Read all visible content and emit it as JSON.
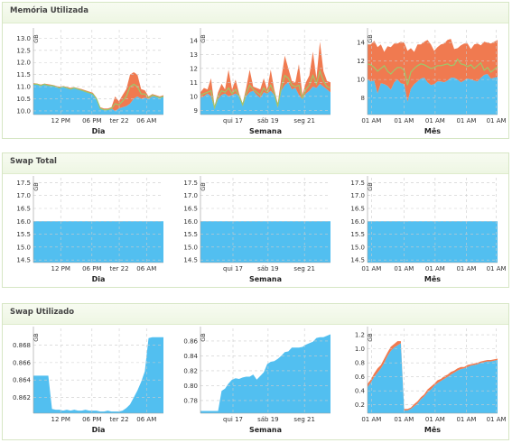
{
  "colors": {
    "used": "#52bff0",
    "cached": "#f07a50",
    "trend": "#9ec76a",
    "grid": "#cccccc"
  },
  "chart_data": [
    {
      "title": "Memória Utilizada",
      "charts": [
        {
          "type": "area",
          "period": "Dia",
          "unit": "GB",
          "ylim": [
            9.85,
            13.2
          ],
          "yticks": [
            "10.0",
            "10.5",
            "11.0",
            "11.5",
            "12.0",
            "12.5",
            "13.0"
          ],
          "ytick_values": [
            10.0,
            10.5,
            11.0,
            11.5,
            12.0,
            12.5,
            13.0
          ],
          "xticks": [
            "12 PM",
            "06 PM",
            "ter 22",
            "06 AM"
          ],
          "xtick_pos": [
            0.21,
            0.45,
            0.66,
            0.87
          ],
          "series": [
            {
              "values": [
                11.1,
                11.1,
                11.05,
                11.1,
                11.05,
                11.05,
                11.0,
                10.95,
                11.0,
                10.95,
                10.9,
                10.95,
                10.9,
                10.85,
                10.8,
                10.75,
                10.7,
                10.5,
                10.1,
                10.05,
                10.05,
                10.1,
                10.0,
                10.1,
                10.15,
                10.2,
                10.3,
                10.5,
                10.6,
                10.5,
                10.55,
                10.5,
                10.6,
                10.6,
                10.55,
                10.6
              ]
            },
            {
              "values": [
                0.05,
                0.03,
                0.04,
                0.03,
                0.05,
                0.03,
                0.04,
                0.05,
                0.03,
                0.04,
                0.05,
                0.03,
                0.04,
                0.05,
                0.05,
                0.05,
                0.05,
                0.05,
                0.05,
                0.05,
                0.05,
                0.05,
                0.6,
                0.3,
                0.5,
                0.7,
                1.2,
                1.1,
                0.9,
                0.4,
                0.3,
                0.1,
                0.1,
                0.05,
                0.05,
                0.05
              ]
            }
          ],
          "trend": [
            11.1,
            11.1,
            11.05,
            11.1,
            11.05,
            11.05,
            11.0,
            10.95,
            11.0,
            10.95,
            10.9,
            10.95,
            10.9,
            10.85,
            10.8,
            10.75,
            10.7,
            10.5,
            10.1,
            10.05,
            10.05,
            10.1,
            10.3,
            10.25,
            10.4,
            10.6,
            11.0,
            11.1,
            11.0,
            10.7,
            10.7,
            10.55,
            10.65,
            10.6,
            10.55,
            10.6
          ]
        },
        {
          "type": "area",
          "period": "Semana",
          "unit": "GB",
          "ylim": [
            8.7,
            14.5
          ],
          "yticks": [
            "9",
            "10",
            "11",
            "12",
            "13",
            "14"
          ],
          "ytick_values": [
            9,
            10,
            11,
            12,
            13,
            14
          ],
          "xticks": [
            "qui 17",
            "sáb 19",
            "seg 21"
          ],
          "xtick_pos": [
            0.25,
            0.52,
            0.8
          ],
          "series": [
            {
              "values": [
                9.9,
                10.0,
                10.2,
                10.0,
                9.1,
                9.8,
                10.1,
                10.2,
                10.0,
                10.1,
                10.2,
                10.0,
                9.3,
                10.0,
                10.3,
                10.4,
                10.1,
                9.9,
                10.3,
                10.2,
                10.4,
                10.1,
                9.2,
                10.4,
                10.8,
                11.0,
                10.5,
                10.6,
                10.1,
                9.8,
                10.2,
                10.4,
                10.7,
                10.6,
                10.9,
                10.7,
                10.5,
                10.3
              ]
            },
            {
              "values": [
                0.4,
                0.6,
                0.3,
                1.3,
                0.2,
                0.5,
                0.8,
                0.3,
                1.9,
                0.4,
                1.0,
                0.2,
                0.2,
                0.6,
                1.6,
                0.3,
                0.5,
                0.6,
                1.0,
                0.3,
                1.5,
                0.4,
                0.3,
                0.9,
                2.1,
                1.0,
                0.6,
                0.4,
                2.2,
                0.3,
                0.8,
                1.1,
                2.5,
                0.7,
                3.0,
                1.1,
                0.6,
                0.7
              ]
            }
          ],
          "trend": [
            10.1,
            10.2,
            10.3,
            10.4,
            9.2,
            10.0,
            10.4,
            10.3,
            10.6,
            10.2,
            10.5,
            10.0,
            9.4,
            10.2,
            10.8,
            10.5,
            10.3,
            10.1,
            10.6,
            10.3,
            10.8,
            10.2,
            9.3,
            10.6,
            11.5,
            11.3,
            10.8,
            10.7,
            10.8,
            9.9,
            10.5,
            10.8,
            11.5,
            10.9,
            11.8,
            11.1,
            10.7,
            10.6
          ]
        },
        {
          "type": "area",
          "period": "Mês",
          "unit": "GB",
          "ylim": [
            6.2,
            15.0
          ],
          "yticks": [
            "8",
            "10",
            "12",
            "14"
          ],
          "ytick_values": [
            8,
            10,
            12,
            14
          ],
          "xticks": [
            "01 AM",
            "01 AM",
            "01 AM",
            "01 AM",
            "01 AM"
          ],
          "xtick_pos": [
            0.03,
            0.28,
            0.52,
            0.76,
            0.99
          ],
          "series": [
            {
              "values": [
                10.0,
                9.8,
                9.9,
                8.5,
                9.6,
                9.5,
                9.3,
                8.9,
                9.7,
                10.0,
                9.6,
                9.5,
                7.6,
                9.0,
                9.5,
                9.8,
                10.1,
                10.2,
                9.7,
                9.4,
                9.5,
                9.8,
                9.8,
                9.7,
                9.9,
                10.2,
                10.2,
                10.0,
                9.7,
                9.9,
                10.1,
                10.0,
                9.9,
                9.8,
                10.2,
                10.5,
                10.6,
                10.1,
                10.2,
                10.3
              ]
            },
            {
              "values": [
                3.8,
                4.0,
                4.3,
                5.0,
                4.2,
                3.5,
                4.3,
                4.6,
                4.2,
                3.9,
                4.5,
                4.5,
                5.5,
                4.4,
                3.5,
                4.0,
                3.7,
                3.9,
                4.6,
                4.4,
                3.6,
                3.7,
                4.0,
                4.2,
                4.4,
                4.2,
                3.1,
                3.4,
                4.0,
                4.0,
                3.8,
                3.3,
                3.9,
                4.1,
                3.5,
                3.6,
                3.4,
                3.8,
                3.9,
                4.0
              ]
            }
          ],
          "trend": [
            11.7,
            11.6,
            11.3,
            10.9,
            11.2,
            11.5,
            10.9,
            10.6,
            11.0,
            11.3,
            11.3,
            11.0,
            9.4,
            10.8,
            11.2,
            11.5,
            11.7,
            11.6,
            11.4,
            11.2,
            11.3,
            11.5,
            11.5,
            11.6,
            11.7,
            11.5,
            11.6,
            12.2,
            11.7,
            11.6,
            11.4,
            11.6,
            11.2,
            11.5,
            11.8,
            11.0,
            11.3,
            10.8,
            11.1,
            11.4
          ]
        }
      ]
    },
    {
      "title": "Swap Total",
      "charts": [
        {
          "type": "area",
          "period": "Dia",
          "unit": "GB",
          "ylim": [
            14.4,
            17.55
          ],
          "yticks": [
            "14.5",
            "15.0",
            "15.5",
            "16.0",
            "16.5",
            "17.0",
            "17.5"
          ],
          "ytick_values": [
            14.5,
            15.0,
            15.5,
            16.0,
            16.5,
            17.0,
            17.5
          ],
          "xticks": [
            "12 PM",
            "06 PM",
            "ter 22",
            "06 AM"
          ],
          "xtick_pos": [
            0.21,
            0.45,
            0.66,
            0.87
          ],
          "series": [
            {
              "values": [
                16.0,
                16.0
              ]
            }
          ]
        },
        {
          "type": "area",
          "period": "Semana",
          "unit": "GB",
          "ylim": [
            14.4,
            17.55
          ],
          "yticks": [
            "14.5",
            "15.0",
            "15.5",
            "16.0",
            "16.5",
            "17.0",
            "17.5"
          ],
          "ytick_values": [
            14.5,
            15.0,
            15.5,
            16.0,
            16.5,
            17.0,
            17.5
          ],
          "xticks": [
            "qui 17",
            "sáb 19",
            "seg 21"
          ],
          "xtick_pos": [
            0.25,
            0.52,
            0.8
          ],
          "series": [
            {
              "values": [
                16.0,
                16.0
              ]
            }
          ]
        },
        {
          "type": "area",
          "period": "Mês",
          "unit": "GB",
          "ylim": [
            14.4,
            17.55
          ],
          "yticks": [
            "14.5",
            "15.0",
            "15.5",
            "16.0",
            "16.5",
            "17.0",
            "17.5"
          ],
          "ytick_values": [
            14.5,
            15.0,
            15.5,
            16.0,
            16.5,
            17.0,
            17.5
          ],
          "xticks": [
            "01 AM",
            "01 AM",
            "01 AM",
            "01 AM",
            "01 AM"
          ],
          "xtick_pos": [
            0.03,
            0.28,
            0.52,
            0.76,
            0.99
          ],
          "series": [
            {
              "values": [
                16.0,
                16.0
              ]
            }
          ]
        }
      ]
    },
    {
      "title": "Swap Utilizado",
      "charts": [
        {
          "type": "area",
          "period": "Dia",
          "unit": "GB",
          "ylim": [
            0.8602,
            0.8695
          ],
          "yticks": [
            "0.862",
            "0.864",
            "0.866",
            "0.868"
          ],
          "ytick_values": [
            0.862,
            0.864,
            0.866,
            0.868
          ],
          "xticks": [
            "12 PM",
            "06 PM",
            "ter 22",
            "06 AM"
          ],
          "xtick_pos": [
            0.21,
            0.45,
            0.66,
            0.87
          ],
          "series": [
            {
              "values": [
                0.8645,
                0.8645,
                0.8645,
                0.8645,
                0.8645,
                0.8607,
                0.8606,
                0.8606,
                0.8605,
                0.8606,
                0.8605,
                0.8606,
                0.8605,
                0.8605,
                0.8606,
                0.8605,
                0.8605,
                0.8605,
                0.8604,
                0.8604,
                0.8605,
                0.8604,
                0.8604,
                0.8604,
                0.8605,
                0.8608,
                0.8612,
                0.862,
                0.8628,
                0.8638,
                0.865,
                0.8688,
                0.8689,
                0.8689,
                0.8689,
                0.8689
              ]
            }
          ]
        },
        {
          "type": "area",
          "period": "Semana",
          "unit": "GB",
          "ylim": [
            0.763,
            0.872
          ],
          "yticks": [
            "0.78",
            "0.80",
            "0.82",
            "0.84",
            "0.86"
          ],
          "ytick_values": [
            0.78,
            0.8,
            0.82,
            0.84,
            0.86
          ],
          "xticks": [
            "qui 17",
            "sáb 19",
            "seg 21"
          ],
          "xtick_pos": [
            0.25,
            0.52,
            0.8
          ],
          "series": [
            {
              "values": [
                0.766,
                0.766,
                0.766,
                0.766,
                0.766,
                0.766,
                0.793,
                0.796,
                0.803,
                0.808,
                0.81,
                0.809,
                0.811,
                0.812,
                0.812,
                0.815,
                0.808,
                0.813,
                0.818,
                0.829,
                0.832,
                0.833,
                0.836,
                0.84,
                0.845,
                0.846,
                0.851,
                0.851,
                0.851,
                0.852,
                0.855,
                0.857,
                0.859,
                0.864,
                0.865,
                0.865,
                0.867,
                0.869
              ]
            }
          ]
        },
        {
          "type": "area",
          "period": "Mês",
          "unit": "GB",
          "ylim": [
            0.08,
            1.24
          ],
          "yticks": [
            "0.2",
            "0.4",
            "0.6",
            "0.8",
            "1.0",
            "1.2"
          ],
          "ytick_values": [
            0.2,
            0.4,
            0.6,
            0.8,
            1.0,
            1.2
          ],
          "xticks": [
            "01 AM",
            "01 AM",
            "01 AM",
            "01 AM",
            "01 AM"
          ],
          "xtick_pos": [
            0.03,
            0.28,
            0.52,
            0.76,
            0.99
          ],
          "series": [
            {
              "values": [
                0.45,
                0.52,
                0.6,
                0.66,
                0.72,
                0.8,
                0.9,
                0.97,
                1.02,
                1.05,
                1.08,
                0.12,
                0.12,
                0.14,
                0.18,
                0.22,
                0.28,
                0.32,
                0.38,
                0.42,
                0.47,
                0.51,
                0.54,
                0.57,
                0.6,
                0.63,
                0.66,
                0.69,
                0.71,
                0.72,
                0.74,
                0.76,
                0.77,
                0.78,
                0.8,
                0.81,
                0.82,
                0.82,
                0.83,
                0.84
              ]
            },
            {
              "values": [
                0.05,
                0.04,
                0.05,
                0.06,
                0.05,
                0.06,
                0.05,
                0.06,
                0.05,
                0.06,
                0.03,
                0.02,
                0.02,
                0.02,
                0.03,
                0.03,
                0.03,
                0.03,
                0.04,
                0.04,
                0.03,
                0.04,
                0.03,
                0.04,
                0.03,
                0.04,
                0.03,
                0.03,
                0.03,
                0.02,
                0.03,
                0.02,
                0.02,
                0.02,
                0.02,
                0.02,
                0.02,
                0.02,
                0.02,
                0.02
              ]
            }
          ]
        }
      ]
    }
  ]
}
